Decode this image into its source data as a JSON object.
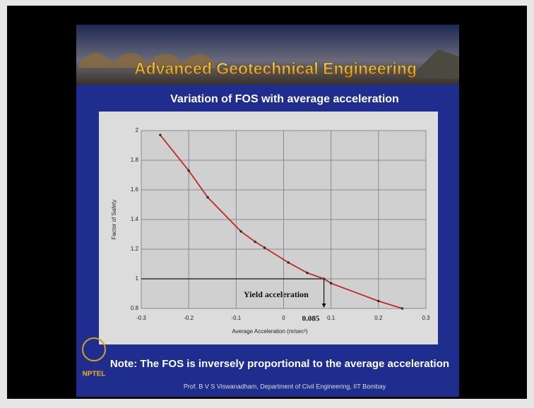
{
  "slide": {
    "banner": "Advanced Geotechnical Engineering",
    "note": "Note: The FOS is inversely proportional to the average acceleration",
    "logo": "NPTEL",
    "footer": "Prof. B V S Viswanadham, Department of Civil Engineering, IIT Bombay"
  },
  "chart_data": {
    "type": "line",
    "title": "Variation of FOS with average acceleration",
    "x_label": "Average Acceleration (m/sec²)",
    "y_label": "Factor of Safety",
    "x": [
      -0.26,
      -0.2,
      -0.16,
      -0.09,
      -0.06,
      -0.04,
      0.01,
      0.05,
      0.085,
      0.1,
      0.2,
      0.25
    ],
    "series": [
      {
        "color": "#c0282a",
        "values": [
          1.97,
          1.73,
          1.55,
          1.32,
          1.25,
          1.21,
          1.11,
          1.04,
          1.0,
          0.97,
          0.85,
          0.8
        ]
      }
    ],
    "markers": true,
    "xlim": [
      -0.3,
      0.3
    ],
    "xticks": [
      -0.3,
      -0.2,
      -0.1,
      0,
      0.1,
      0.2,
      0.3
    ],
    "ylim": [
      0.8,
      2
    ],
    "yticks": [
      0.8,
      1,
      1.2,
      1.4,
      1.6,
      1.8,
      2
    ],
    "grid": true,
    "annotation": {
      "text": "Yield acceleration",
      "x": 0.085,
      "y": 1
    }
  }
}
